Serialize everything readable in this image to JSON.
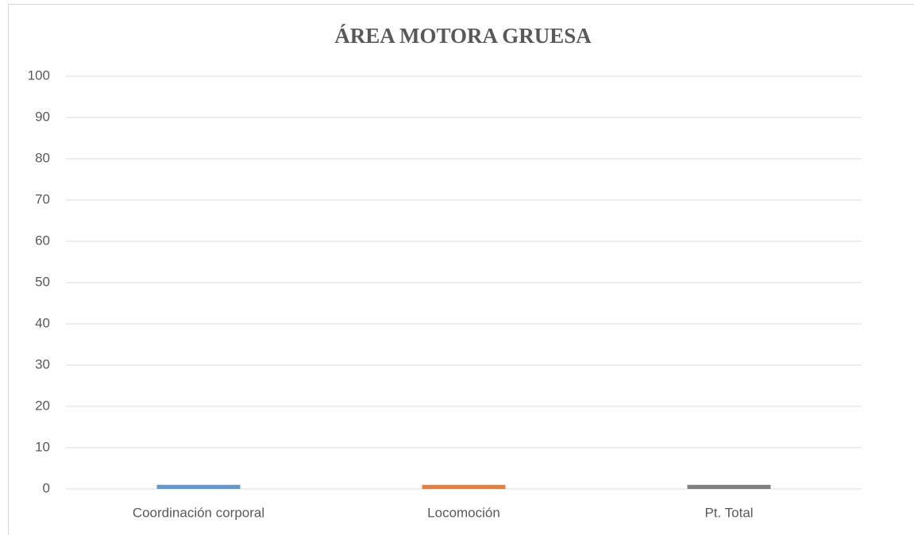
{
  "chart_data": {
    "type": "bar",
    "title": "ÁREA MOTORA GRUESA",
    "categories": [
      "Coordinación corporal",
      "Locomoción",
      "Pt. Total"
    ],
    "values": [
      1,
      1,
      1
    ],
    "colors": [
      "#5b9bd5",
      "#ed7d31",
      "#7f7f7f"
    ],
    "ylim": [
      0,
      100
    ],
    "yticks": [
      0,
      10,
      20,
      30,
      40,
      50,
      60,
      70,
      80,
      90,
      100
    ],
    "grid": true
  }
}
